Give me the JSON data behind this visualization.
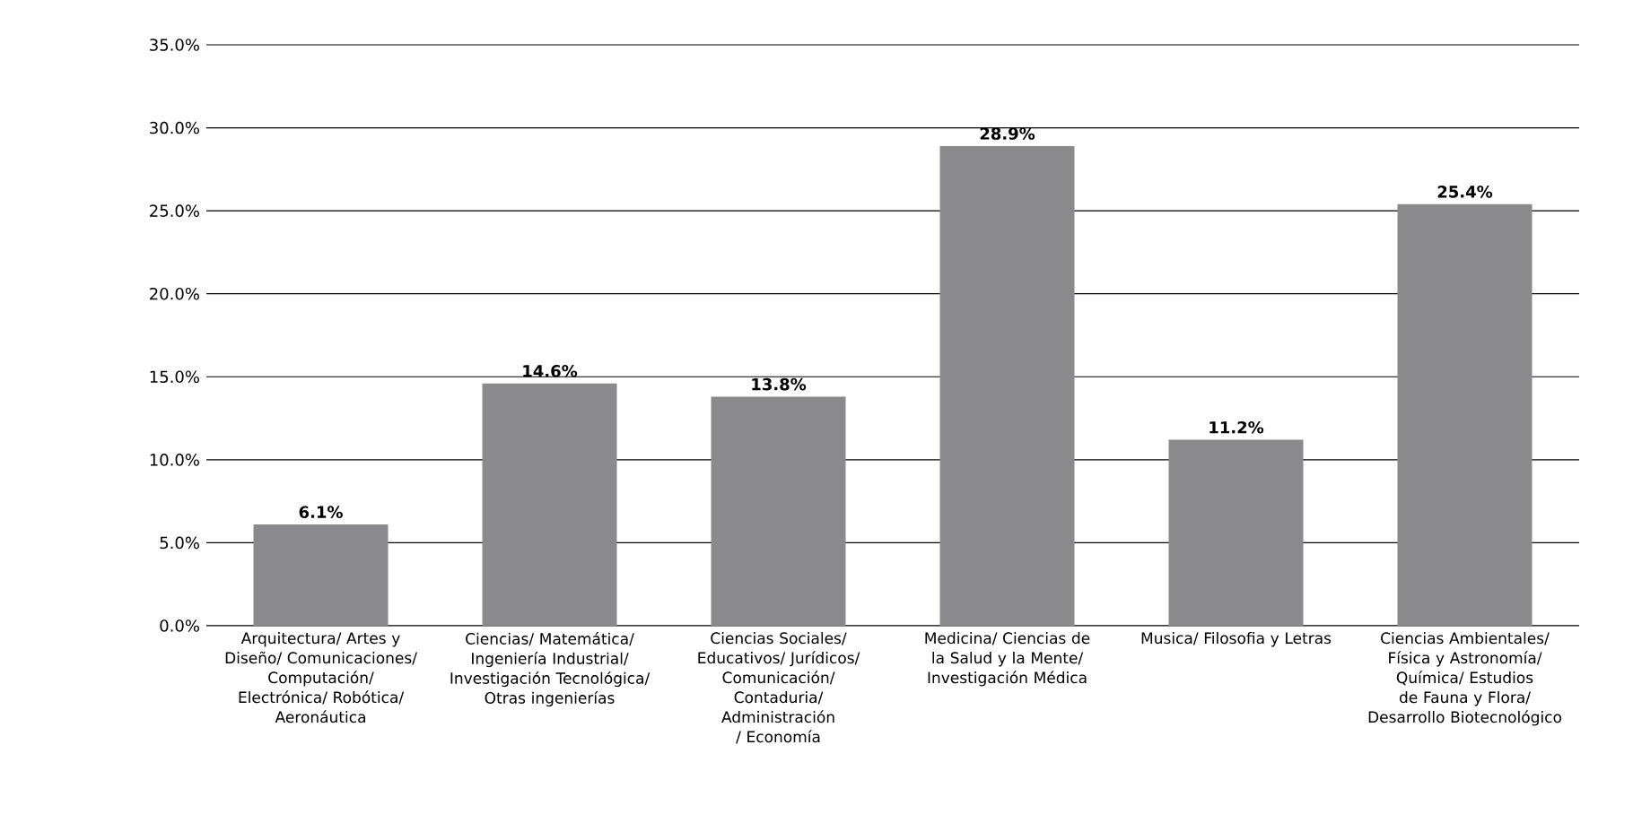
{
  "chart_data": {
    "type": "bar",
    "categories": [
      "Arquitectura/ Artes y Diseño/ Comunicaciones/ Computación/ Electrónica/ Robótica/ Aeronáutica",
      "Ciencias/ Matemática/ Ingeniería Industrial/ Investigación Tecnológica/ Otras ingenierías",
      "Ciencias Sociales/ Educativos/ Jurídicos/ Comunicación/ Contaduria/ Administración / Economía",
      "Medicina/ Ciencias de la Salud y la Mente/ Investigación Médica",
      "Musica/ Filosofia y Letras",
      "Ciencias Ambientales/ Física y Astronomía/ Química/ Estudios de Fauna y Flora/ Desarrollo Biotecnológico"
    ],
    "values": [
      6.1,
      14.6,
      13.8,
      28.9,
      11.2,
      25.4
    ],
    "value_labels": [
      "6.1%",
      "14.6%",
      "13.8%",
      "28.9%",
      "11.2%",
      "25.4%"
    ],
    "color": "#8a8a8c",
    "ylim": [
      0,
      35
    ],
    "yticks": [
      {
        "value": 0,
        "label": "0.0%"
      },
      {
        "value": 5,
        "label": "5.0%"
      },
      {
        "value": 10,
        "label": "10.0%"
      },
      {
        "value": 15,
        "label": "15.0%"
      },
      {
        "value": 20,
        "label": "20.0%"
      },
      {
        "value": 25,
        "label": "25.0%"
      },
      {
        "value": 30,
        "label": "30.0%"
      },
      {
        "value": 35,
        "label": "35.0%"
      }
    ],
    "grid": "y"
  }
}
